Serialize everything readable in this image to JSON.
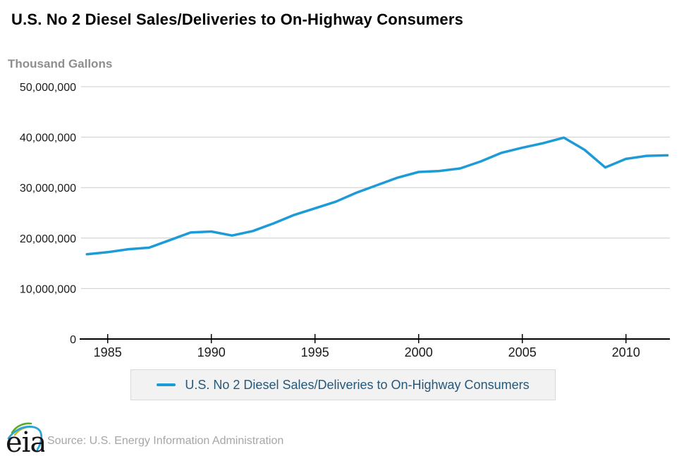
{
  "header": {
    "title": "U.S. No 2 Diesel Sales/Deliveries to On-Highway Consumers",
    "units_label": "Thousand Gallons"
  },
  "legend": {
    "series_label": "U.S. No 2 Diesel Sales/Deliveries to On-Highway Consumers"
  },
  "footer": {
    "logo_text": "eia",
    "source": "Source: U.S. Energy Information Administration"
  },
  "colors": {
    "line": "#1d9bd7",
    "title_text": "#000000",
    "units_text": "#8e8e8e",
    "tick_text": "#1a1a1a",
    "gridline": "#cccccc",
    "axis_line": "#000000",
    "legend_bg": "#f2f2f2",
    "legend_border": "#d9d9d9",
    "legend_text": "#26587a",
    "source_text": "#a6a6a6",
    "logo_text": "#151515",
    "logo_green": "#5aaa2a",
    "logo_yellow": "#c2b626",
    "logo_blue": "#29a5dc"
  },
  "chart_data": {
    "type": "line",
    "title": "U.S. No 2 Diesel Sales/Deliveries to On-Highway Consumers",
    "xlabel": "",
    "ylabel": "Thousand Gallons",
    "series_name": "U.S. No 2 Diesel Sales/Deliveries to On-Highway Consumers",
    "x": [
      1984,
      1985,
      1986,
      1987,
      1988,
      1989,
      1990,
      1991,
      1992,
      1993,
      1994,
      1995,
      1996,
      1997,
      1998,
      1999,
      2000,
      2001,
      2002,
      2003,
      2004,
      2005,
      2006,
      2007,
      2008,
      2009,
      2010,
      2011,
      2012
    ],
    "values": [
      16800000,
      17200000,
      17800000,
      18100000,
      19600000,
      21100000,
      21300000,
      20500000,
      21400000,
      22900000,
      24600000,
      25900000,
      27200000,
      29000000,
      30500000,
      32000000,
      33100000,
      33300000,
      33800000,
      35200000,
      36900000,
      37900000,
      38800000,
      39900000,
      37500000,
      34000000,
      35700000,
      36300000,
      36400000
    ],
    "ylim": [
      0,
      50000000
    ],
    "yticks": [
      0,
      10000000,
      20000000,
      30000000,
      40000000,
      50000000
    ],
    "xticks": [
      1985,
      1990,
      1995,
      2000,
      2005,
      2010
    ],
    "grid": true,
    "legend_position": "bottom"
  }
}
